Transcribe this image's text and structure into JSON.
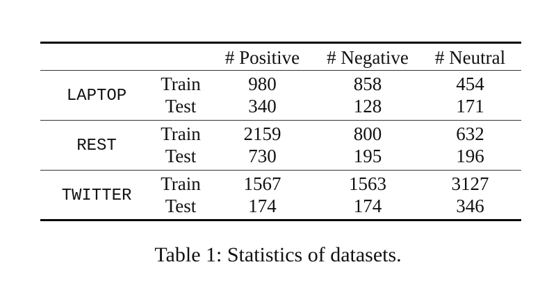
{
  "table": {
    "columns": [
      "",
      "",
      "# Positive",
      "# Negative",
      "# Neutral"
    ],
    "groups": [
      {
        "dataset": "LAPTOP",
        "rows": [
          {
            "split": "Train",
            "positive": "980",
            "negative": "858",
            "neutral": "454"
          },
          {
            "split": "Test",
            "positive": "340",
            "negative": "128",
            "neutral": "171"
          }
        ]
      },
      {
        "dataset": "REST",
        "rows": [
          {
            "split": "Train",
            "positive": "2159",
            "negative": "800",
            "neutral": "632"
          },
          {
            "split": "Test",
            "positive": "730",
            "negative": "195",
            "neutral": "196"
          }
        ]
      },
      {
        "dataset": "TWITTER",
        "rows": [
          {
            "split": "Train",
            "positive": "1567",
            "negative": "1563",
            "neutral": "3127"
          },
          {
            "split": "Test",
            "positive": "174",
            "negative": "174",
            "neutral": "346"
          }
        ]
      }
    ]
  },
  "caption": "Table 1: Statistics of datasets."
}
